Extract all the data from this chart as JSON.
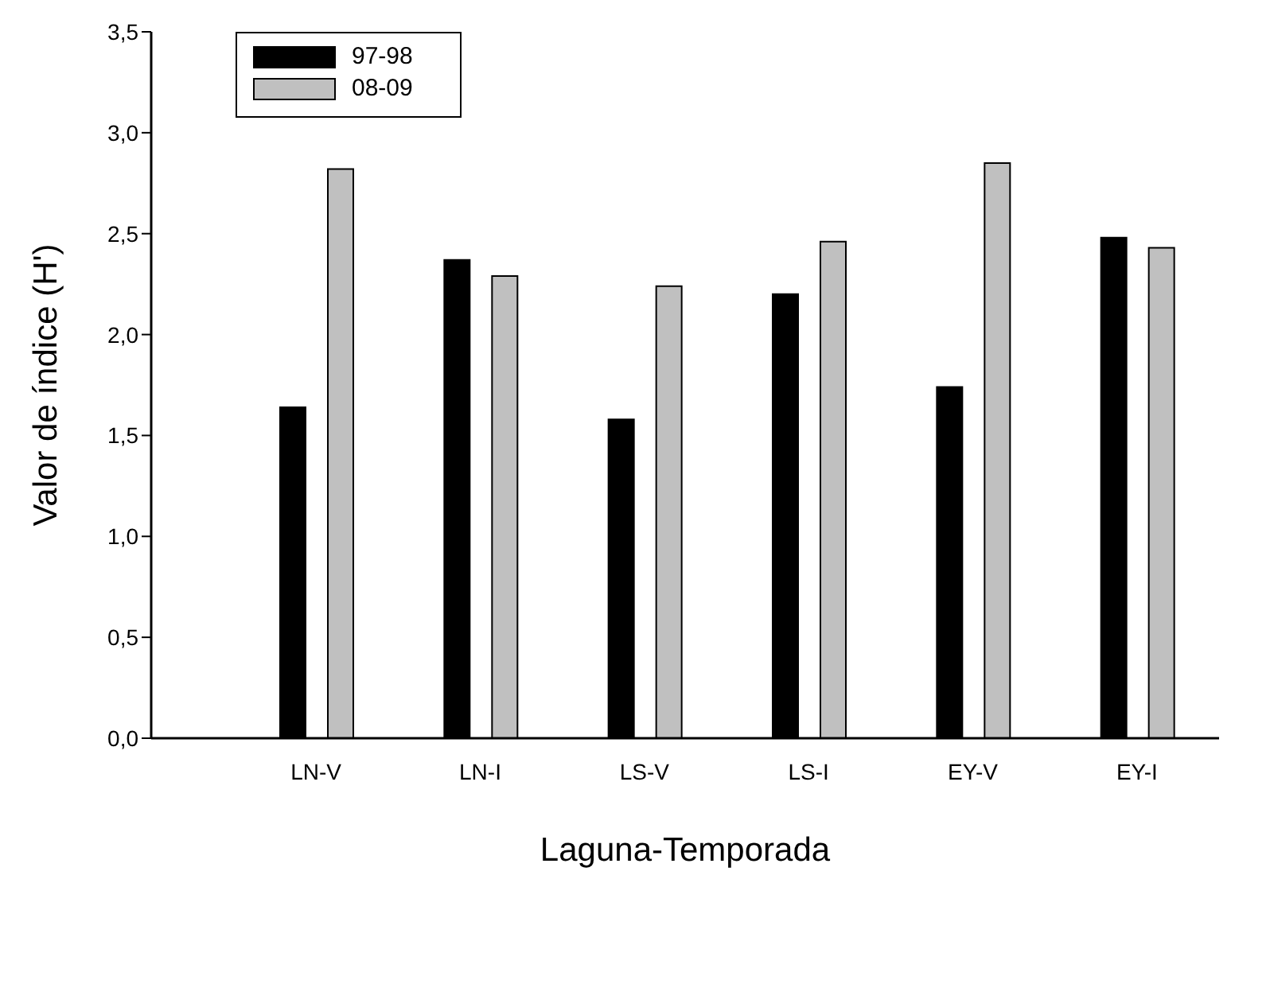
{
  "chart_data": {
    "type": "bar",
    "xlabel": "Laguna-Temporada",
    "ylabel": "Valor de índice (H')",
    "categories": [
      "LN-V",
      "LN-I",
      "LS-V",
      "LS-I",
      "EY-V",
      "EY-I"
    ],
    "series": [
      {
        "name": "97-98",
        "color": "#000000",
        "values": [
          1.64,
          2.37,
          1.58,
          2.2,
          1.74,
          2.48
        ]
      },
      {
        "name": "08-09",
        "color": "#c0c0c0",
        "values": [
          2.82,
          2.29,
          2.24,
          2.46,
          2.85,
          2.43
        ]
      }
    ],
    "ylim": [
      0,
      3.5
    ],
    "yticks": [
      {
        "value": 0,
        "label": "0,0"
      },
      {
        "value": 0.5,
        "label": "0,5"
      },
      {
        "value": 1,
        "label": "1,0"
      },
      {
        "value": 1.5,
        "label": "1,5"
      },
      {
        "value": 2,
        "label": "2,0"
      },
      {
        "value": 2.5,
        "label": "2,5"
      },
      {
        "value": 3,
        "label": "3,0"
      },
      {
        "value": 3.5,
        "label": "3,5"
      }
    ],
    "grid": false,
    "legend": "top left"
  }
}
